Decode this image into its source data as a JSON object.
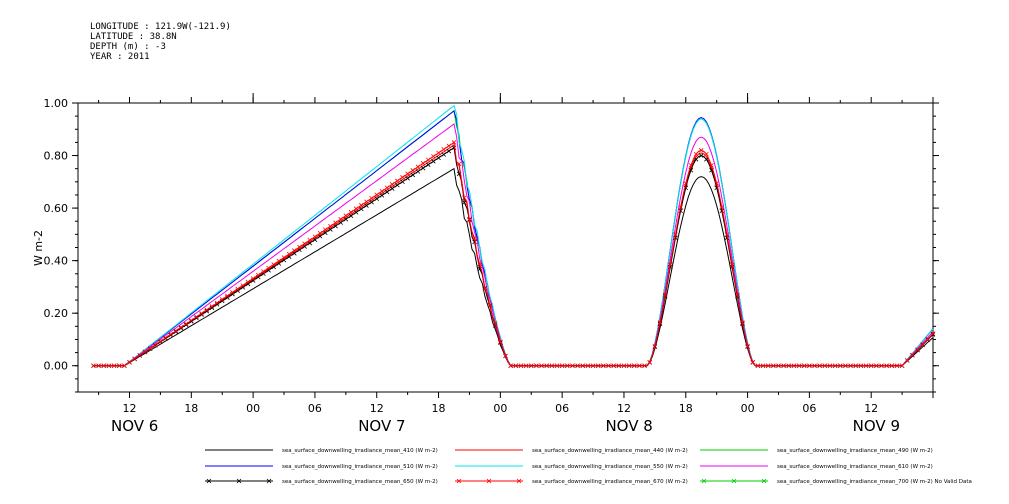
{
  "header": {
    "lines": [
      "LONGITUDE : 121.9W(-121.9)",
      "LATITUDE : 38.8N",
      "DEPTH (m) : -3",
      "YEAR : 2011"
    ]
  },
  "chart_data": {
    "type": "line",
    "title": "",
    "ylabel": "W m-2",
    "xlabel": "",
    "ylim": [
      -0.1,
      1.0
    ],
    "yticks": [
      0.0,
      0.2,
      0.4,
      0.6,
      0.8,
      1.0
    ],
    "ytick_labels": [
      "0.00",
      "0.20",
      "0.40",
      "0.60",
      "0.80",
      "1.00"
    ],
    "xlim_hours": [
      7,
      90
    ],
    "xticks": [
      {
        "h": 12,
        "label": "12"
      },
      {
        "h": 18,
        "label": "18"
      },
      {
        "h": 24,
        "label": "00"
      },
      {
        "h": 30,
        "label": "06"
      },
      {
        "h": 36,
        "label": "12"
      },
      {
        "h": 42,
        "label": "18"
      },
      {
        "h": 48,
        "label": "00"
      },
      {
        "h": 54,
        "label": "06"
      },
      {
        "h": 60,
        "label": "12"
      },
      {
        "h": 66,
        "label": "18"
      },
      {
        "h": 72,
        "label": "00"
      },
      {
        "h": 78,
        "label": "06"
      },
      {
        "h": 84,
        "label": "12"
      }
    ],
    "day_labels": [
      {
        "h": 12.5,
        "label": "NOV  6"
      },
      {
        "h": 36.5,
        "label": "NOV  7"
      },
      {
        "h": 60.5,
        "label": "NOV  8"
      },
      {
        "h": 84.5,
        "label": "NOV  9"
      }
    ],
    "grid": false,
    "series": [
      {
        "name": "sea_surface_downwelling_irradiance_mean_410 (W m-2)",
        "color": "#000000",
        "peak": 0.72,
        "first_peak": 0.75,
        "marker": false
      },
      {
        "name": "sea_surface_downwelling_irradiance_mean_440 (W m-2)",
        "color": "#ff0000",
        "peak": 0.81,
        "first_peak": 0.84,
        "marker": false
      },
      {
        "name": "sea_surface_downwelling_irradiance_mean_490 (W m-2)",
        "color": "#00cc00",
        "peak": 0.94,
        "first_peak": 0.97,
        "marker": false
      },
      {
        "name": "sea_surface_downwelling_irradiance_mean_510 (W m-2)",
        "color": "#0000ff",
        "peak": 0.945,
        "first_peak": 0.97,
        "marker": false
      },
      {
        "name": "sea_surface_downwelling_irradiance_mean_550 (W m-2)",
        "color": "#00e5ee",
        "peak": 0.94,
        "first_peak": 0.99,
        "marker": false
      },
      {
        "name": "sea_surface_downwelling_irradiance_mean_610 (W m-2)",
        "color": "#ee00ee",
        "peak": 0.87,
        "first_peak": 0.92,
        "marker": false
      },
      {
        "name": "sea_surface_downwelling_irradiance_mean_650 (W m-2)",
        "color": "#000000",
        "peak": 0.8,
        "first_peak": 0.83,
        "marker": true
      },
      {
        "name": "sea_surface_downwelling_irradiance_mean_670 (W m-2)",
        "color": "#ff0000",
        "peak": 0.82,
        "first_peak": 0.85,
        "marker": true
      },
      {
        "name": "sea_surface_downwelling_irradiance_mean_700 (W m-2) No Valid Data",
        "color": "#00cc00",
        "peak": 0,
        "first_peak": 0,
        "marker": true,
        "no_data": true
      }
    ],
    "shape_hours": {
      "flat_start": 8.5,
      "ramp_start": 11.5,
      "first_peak": 43.5,
      "first_zero": 49.0,
      "second_rise": 62.5,
      "second_peak": 67.5,
      "second_zero": 73.0,
      "third_rise": 87.0,
      "end": 90.0
    }
  }
}
